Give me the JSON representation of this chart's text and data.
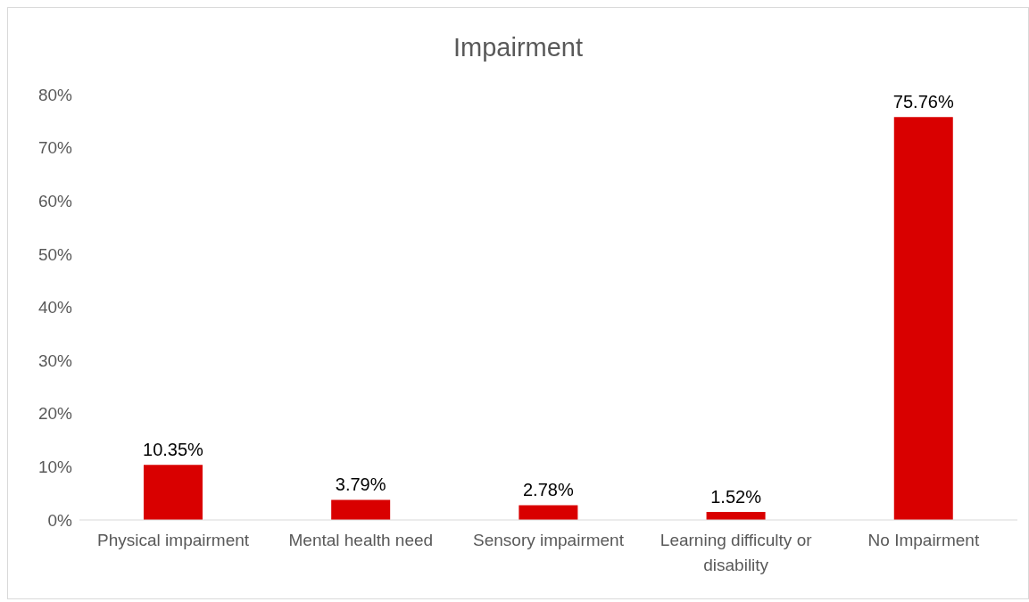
{
  "chart_data": {
    "type": "bar",
    "title": "Impairment",
    "categories": [
      "Physical impairment",
      "Mental health need",
      "Sensory impairment",
      "Learning difficulty or disability",
      "No Impairment"
    ],
    "values": [
      10.35,
      3.79,
      2.78,
      1.52,
      75.76
    ],
    "value_labels": [
      "10.35%",
      "3.79%",
      "2.78%",
      "1.52%",
      "75.76%"
    ],
    "color": "#d90000",
    "ylim": [
      0,
      80
    ],
    "yticks": [
      {
        "value": 0,
        "label": "0%"
      },
      {
        "value": 10,
        "label": "10%"
      },
      {
        "value": 20,
        "label": "20%"
      },
      {
        "value": 30,
        "label": "30%"
      },
      {
        "value": 40,
        "label": "40%"
      },
      {
        "value": 50,
        "label": "50%"
      },
      {
        "value": 60,
        "label": "60%"
      },
      {
        "value": 70,
        "label": "70%"
      },
      {
        "value": 80,
        "label": "80%"
      }
    ],
    "grid": false,
    "legend": false
  }
}
